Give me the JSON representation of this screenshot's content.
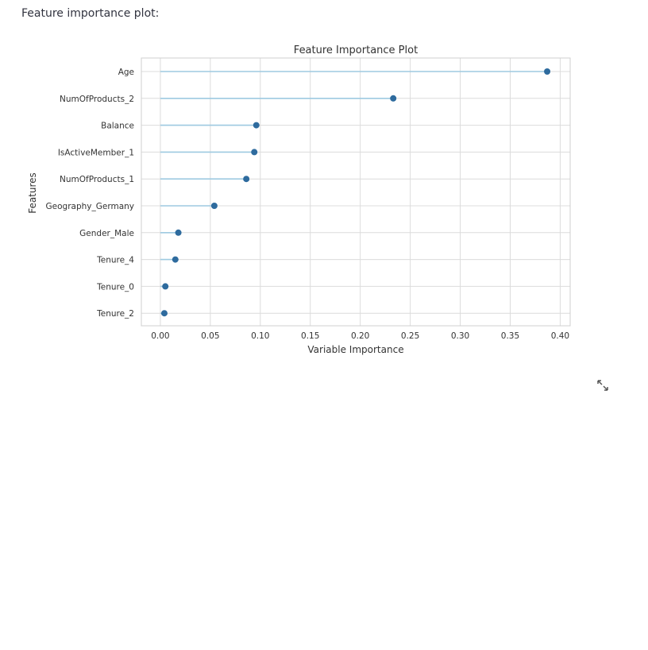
{
  "caption": "Feature importance plot:",
  "expand_icon": "fullscreen-expand-icon",
  "colors": {
    "stem": "#9ecae1",
    "marker": "#2e6b9e",
    "grid": "#dcdcdc",
    "frame": "#cfcfcf",
    "text": "#333333"
  },
  "chart_data": {
    "type": "lollipop",
    "title": "Feature Importance Plot",
    "xlabel": "Variable Importance",
    "ylabel": "Features",
    "xlim": [
      -0.019,
      0.41
    ],
    "xticks": [
      "0.00",
      "0.05",
      "0.10",
      "0.15",
      "0.20",
      "0.25",
      "0.30",
      "0.35",
      "0.40"
    ],
    "grid": true,
    "categories": [
      "Age",
      "NumOfProducts_2",
      "Balance",
      "IsActiveMember_1",
      "NumOfProducts_1",
      "Geography_Germany",
      "Gender_Male",
      "Tenure_4",
      "Tenure_0",
      "Tenure_2"
    ],
    "values": [
      0.387,
      0.233,
      0.096,
      0.094,
      0.086,
      0.054,
      0.018,
      0.015,
      0.005,
      0.004
    ]
  }
}
